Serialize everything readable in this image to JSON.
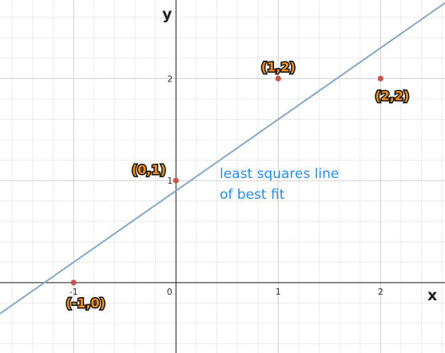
{
  "chart_data": {
    "type": "scatter",
    "title": "",
    "xlabel": "x",
    "ylabel": "y",
    "xlim": [
      -1.72,
      2.63
    ],
    "ylim": [
      -0.69,
      2.77
    ],
    "grid": true,
    "x_ticks": [
      {
        "value": -1,
        "label": "-1"
      },
      {
        "value": 0,
        "label": "0"
      },
      {
        "value": 1,
        "label": "1"
      },
      {
        "value": 2,
        "label": "2"
      }
    ],
    "y_ticks": [
      {
        "value": 1,
        "label": "1"
      },
      {
        "value": 2,
        "label": "2"
      }
    ],
    "points": [
      {
        "x": -1,
        "y": 0,
        "label": "(-1,0)"
      },
      {
        "x": 0,
        "y": 1,
        "label": "(0,1)"
      },
      {
        "x": 1,
        "y": 2,
        "label": "(1,2)"
      },
      {
        "x": 2,
        "y": 2,
        "label": "(2,2)"
      }
    ],
    "fit_line": {
      "slope": 0.7,
      "intercept": 0.9
    },
    "annotation": [
      "least squares line",
      "of best fit"
    ],
    "colors": {
      "point": "#c4584f",
      "line": "#88a8c4",
      "label_fill": "#f28c1a",
      "annotation": "#2b8de6"
    }
  }
}
